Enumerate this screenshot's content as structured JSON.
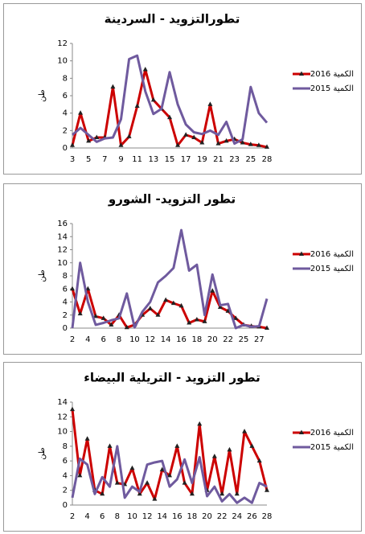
{
  "chart_data": [
    {
      "type": "line",
      "title": "تطورالتزويد - السردينة",
      "y_label": "طن",
      "categories": [
        "3",
        null,
        "5",
        null,
        "7",
        null,
        "9",
        null,
        "11",
        null,
        "13",
        null,
        "15",
        null,
        "17",
        null,
        "19",
        null,
        "21",
        null,
        "23",
        null,
        "25",
        null,
        "28"
      ],
      "series": [
        {
          "name": "2016 الكمية",
          "color": "#cc0000",
          "values": [
            0.3,
            4,
            0.8,
            1.2,
            1.2,
            7,
            0.3,
            1.3,
            4.8,
            9,
            5.5,
            4.5,
            3.5,
            0.3,
            1.5,
            1.2,
            0.6,
            5,
            0.5,
            0.8,
            1,
            0.6,
            0.4,
            0.3,
            0.1
          ]
        },
        {
          "name": "2015 الكمية",
          "color": "#6f5a9e",
          "values": [
            1.5,
            2.3,
            1.5,
            0.7,
            1.1,
            1.2,
            3.3,
            10.2,
            10.6,
            6.5,
            3.9,
            4.5,
            8.7,
            5,
            2.7,
            1.8,
            1.6,
            2,
            1.5,
            3,
            0.5,
            1,
            7,
            4,
            2.9
          ]
        }
      ],
      "ylim": [
        0,
        12
      ],
      "yticks": [
        0,
        2,
        4,
        6,
        8,
        10,
        12
      ]
    },
    {
      "type": "line",
      "title": "تطور التزويد- الشورو",
      "y_label": "طن",
      "categories": [
        "2",
        null,
        "4",
        null,
        "6",
        null,
        "8",
        null,
        "10",
        null,
        "12",
        null,
        "14",
        null,
        "16",
        null,
        "18",
        null,
        "20",
        null,
        "22",
        null,
        "25",
        null,
        "27",
        null
      ],
      "series": [
        {
          "name": "2016 الكمية",
          "color": "#cc0000",
          "values": [
            6,
            2.2,
            6,
            1.8,
            1.5,
            0.5,
            2,
            0.1,
            0.5,
            2,
            3,
            2,
            4.3,
            3.8,
            3.4,
            0.8,
            1.3,
            1,
            5.7,
            3.2,
            2.6,
            1.5,
            0.5,
            0.3,
            0.2,
            0
          ]
        },
        {
          "name": "2015 الكمية",
          "color": "#6f5a9e",
          "values": [
            0,
            10,
            4,
            0.5,
            0.8,
            1.2,
            1.5,
            5.3,
            0.1,
            2.5,
            4,
            7,
            8,
            9.2,
            15,
            8.8,
            9.7,
            2,
            8.2,
            3.5,
            3.7,
            0,
            0.5,
            0.2,
            0.3,
            4.5
          ]
        }
      ],
      "ylim": [
        0,
        16
      ],
      "yticks": [
        0,
        2,
        4,
        6,
        8,
        10,
        12,
        14,
        16
      ]
    },
    {
      "type": "line",
      "title": "تطور التزويد - التريلية البيضاء",
      "y_label": "طن",
      "categories": [
        "2",
        null,
        "4",
        null,
        "6",
        null,
        "8",
        null,
        "10",
        null,
        "12",
        null,
        "14",
        null,
        "16",
        null,
        "18",
        null,
        "20",
        null,
        "22",
        null,
        "24",
        null,
        "26",
        null,
        "28"
      ],
      "series": [
        {
          "name": "2016 الكمية",
          "color": "#cc0000",
          "values": [
            13,
            4,
            9,
            2,
            1.5,
            8,
            3,
            2.8,
            5,
            1.5,
            3,
            0.8,
            4.8,
            4,
            8,
            3,
            1.5,
            11,
            2,
            6.6,
            1.5,
            7.5,
            1.5,
            10,
            8,
            6,
            2
          ]
        },
        {
          "name": "2015 الكمية",
          "color": "#6f5a9e",
          "values": [
            1,
            6.3,
            5.5,
            1.5,
            3.8,
            2.5,
            8,
            1,
            2.5,
            1.8,
            5.5,
            5.8,
            6,
            2.5,
            3.5,
            6.2,
            3,
            6.5,
            1.2,
            2.5,
            0.5,
            1.5,
            0.3,
            1,
            0.3,
            3,
            2.5
          ]
        }
      ],
      "ylim": [
        0,
        14
      ],
      "yticks": [
        0,
        2,
        4,
        6,
        8,
        10,
        12,
        14
      ]
    }
  ]
}
